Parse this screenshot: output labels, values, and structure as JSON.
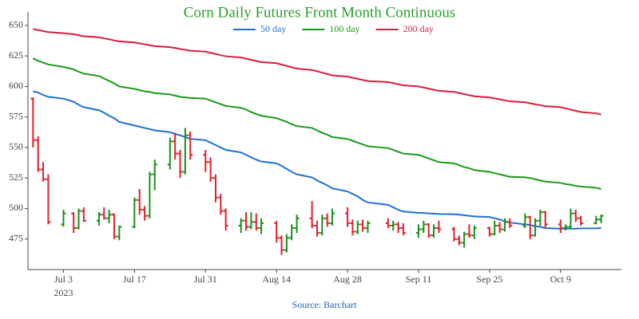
{
  "chart_data": {
    "type": "ohlc",
    "title": "Corn Daily Futures Front Month Continuous",
    "source": "Source: Barchart",
    "title_color": "#2ca02c",
    "source_color": "#1f5fbf",
    "up_color": "#1a8f1a",
    "down_color": "#e2202a",
    "legend_position": "top",
    "grid": false,
    "x": [
      "2023-06-27",
      "2023-06-28",
      "2023-06-29",
      "2023-06-30",
      "2023-07-03",
      "2023-07-05",
      "2023-07-06",
      "2023-07-07",
      "2023-07-10",
      "2023-07-11",
      "2023-07-12",
      "2023-07-13",
      "2023-07-14",
      "2023-07-17",
      "2023-07-18",
      "2023-07-19",
      "2023-07-20",
      "2023-07-21",
      "2023-07-24",
      "2023-07-25",
      "2023-07-26",
      "2023-07-27",
      "2023-07-28",
      "2023-07-31",
      "2023-08-01",
      "2023-08-02",
      "2023-08-03",
      "2023-08-04",
      "2023-08-07",
      "2023-08-08",
      "2023-08-09",
      "2023-08-10",
      "2023-08-11",
      "2023-08-14",
      "2023-08-15",
      "2023-08-16",
      "2023-08-17",
      "2023-08-18",
      "2023-08-21",
      "2023-08-22",
      "2023-08-23",
      "2023-08-24",
      "2023-08-25",
      "2023-08-28",
      "2023-08-29",
      "2023-08-30",
      "2023-08-31",
      "2023-09-01",
      "2023-09-05",
      "2023-09-06",
      "2023-09-07",
      "2023-09-08",
      "2023-09-11",
      "2023-09-12",
      "2023-09-13",
      "2023-09-14",
      "2023-09-15",
      "2023-09-18",
      "2023-09-19",
      "2023-09-20",
      "2023-09-21",
      "2023-09-22",
      "2023-09-25",
      "2023-09-26",
      "2023-09-27",
      "2023-09-28",
      "2023-09-29",
      "2023-10-02",
      "2023-10-03",
      "2023-10-04",
      "2023-10-05",
      "2023-10-06",
      "2023-10-09",
      "2023-10-10",
      "2023-10-11",
      "2023-10-12",
      "2023-10-13",
      "2023-10-16",
      "2023-10-17"
    ],
    "open": [
      590,
      556,
      532,
      524,
      487,
      496,
      484,
      498,
      490,
      495,
      492,
      495,
      477,
      485,
      507,
      499,
      494,
      528,
      536,
      555,
      545,
      530,
      560,
      544,
      538,
      525,
      509,
      498,
      486,
      490,
      485,
      489,
      484,
      488,
      476,
      466,
      476,
      484,
      492,
      486,
      480,
      492,
      488,
      496,
      488,
      481,
      487,
      484,
      488,
      486,
      487,
      484,
      480,
      483,
      487,
      478,
      484,
      483,
      475,
      472,
      479,
      478,
      484,
      479,
      486,
      483,
      489,
      486,
      493,
      478,
      490,
      497,
      487,
      484,
      485,
      496,
      492,
      488,
      491
    ],
    "high": [
      591,
      559,
      538,
      528,
      499,
      497,
      500,
      501,
      497,
      501,
      499,
      496,
      486,
      509,
      516,
      502,
      530,
      540,
      558,
      562,
      548,
      566,
      563,
      548,
      542,
      528,
      512,
      500,
      492,
      497,
      497,
      496,
      492,
      490,
      478,
      479,
      487,
      495,
      506,
      490,
      495,
      496,
      500,
      501,
      491,
      490,
      491,
      490,
      492,
      490,
      489,
      488,
      487,
      490,
      488,
      487,
      490,
      485,
      478,
      481,
      487,
      486,
      485,
      490,
      489,
      492,
      492,
      496,
      494,
      492,
      499,
      498,
      491,
      487,
      500,
      499,
      494,
      494,
      495
    ],
    "low": [
      550,
      530,
      522,
      487,
      485,
      480,
      483,
      489,
      486,
      491,
      488,
      475,
      474,
      484,
      495,
      490,
      492,
      515,
      532,
      540,
      525,
      528,
      540,
      530,
      522,
      505,
      495,
      482,
      480,
      482,
      483,
      482,
      479,
      472,
      462,
      464,
      474,
      480,
      484,
      477,
      478,
      485,
      486,
      485,
      478,
      479,
      481,
      480,
      484,
      482,
      480,
      478,
      476,
      480,
      476,
      476,
      480,
      473,
      470,
      468,
      476,
      475,
      477,
      478,
      480,
      481,
      484,
      484,
      475,
      477,
      486,
      484,
      480,
      482,
      483,
      489,
      486,
      487,
      488
    ],
    "close": [
      556,
      532,
      524,
      489,
      496,
      484,
      498,
      490,
      495,
      492,
      495,
      477,
      485,
      507,
      499,
      494,
      528,
      536,
      555,
      545,
      530,
      560,
      544,
      538,
      525,
      509,
      498,
      486,
      490,
      485,
      489,
      484,
      488,
      476,
      466,
      476,
      484,
      492,
      486,
      480,
      492,
      488,
      496,
      488,
      481,
      487,
      484,
      488,
      486,
      487,
      484,
      480,
      483,
      487,
      478,
      484,
      483,
      475,
      472,
      479,
      478,
      484,
      479,
      486,
      483,
      489,
      486,
      493,
      478,
      490,
      497,
      487,
      484,
      485,
      496,
      492,
      488,
      491,
      494
    ],
    "series": [
      {
        "name": "50 day",
        "color": "#1f6fd6",
        "values": [
          596,
          595,
          593,
          591.5,
          590,
          587.5,
          585,
          583,
          580.5,
          578.5,
          576,
          574,
          571,
          568,
          567,
          566,
          565,
          564,
          562.5,
          561,
          560,
          558.5,
          557,
          556,
          554,
          552,
          550,
          548,
          546,
          544,
          542,
          540,
          538.5,
          537,
          535,
          532.5,
          530,
          528,
          525.5,
          523,
          521,
          519,
          516.5,
          514,
          512,
          510,
          507,
          505,
          503,
          501,
          499,
          497.5,
          496.5,
          496.3,
          496,
          495.8,
          495.5,
          495.3,
          495,
          494.5,
          494,
          493.5,
          493,
          492,
          491,
          489.5,
          488.5,
          487,
          486.5,
          485.5,
          485,
          484,
          483.5,
          483.5,
          483.5,
          483.5,
          483.7,
          483.8,
          484
        ]
      },
      {
        "name": "100 day",
        "color": "#1a9a1a",
        "values": [
          623,
          621,
          619.5,
          618,
          616,
          614,
          612,
          610.5,
          608.5,
          606.5,
          604.5,
          602.5,
          600,
          598,
          597,
          596,
          595.5,
          594.5,
          593.5,
          592.5,
          591.5,
          591,
          590.5,
          590,
          588.5,
          587,
          585.5,
          584,
          582.5,
          581,
          579,
          577.5,
          576,
          574,
          572.5,
          571,
          569,
          567.5,
          566,
          564,
          562,
          560.5,
          558.5,
          557,
          555.5,
          554,
          552.5,
          551,
          549.5,
          548,
          546.5,
          545,
          544,
          542.5,
          541,
          539.5,
          538,
          537,
          535.5,
          534,
          533,
          531.5,
          530,
          529,
          528,
          527,
          526,
          525.5,
          525,
          524,
          523,
          522,
          521,
          520,
          519.5,
          518.5,
          518,
          517,
          516
        ]
      },
      {
        "name": "200 day",
        "color": "#d81e3c",
        "values": [
          647,
          646.2,
          645.3,
          644.5,
          643.6,
          642.8,
          642,
          641.1,
          640.3,
          639.4,
          638.6,
          637.7,
          636.9,
          636,
          635.3,
          634.5,
          633.8,
          633,
          632.2,
          631.5,
          630.7,
          630,
          629.2,
          628.5,
          627.5,
          626.6,
          625.6,
          624.7,
          623.7,
          622.8,
          621.8,
          620.9,
          619.9,
          619,
          617.9,
          616.8,
          615.7,
          614.6,
          613.5,
          612.4,
          611.3,
          610.2,
          609.1,
          608,
          607.1,
          606.2,
          605.3,
          604.4,
          603.6,
          602.7,
          601.8,
          600.9,
          600,
          599.1,
          598.2,
          597.3,
          596.4,
          595.5,
          594.6,
          593.7,
          592.8,
          591.9,
          591,
          590.2,
          589.4,
          588.6,
          587.8,
          587,
          586.2,
          585.4,
          584.6,
          583.8,
          583,
          582,
          581,
          580,
          579,
          578,
          577
        ]
      }
    ],
    "xlim": [
      "2023-06-26",
      "2023-10-21"
    ],
    "xticks": [
      {
        "value": "2023-07-03",
        "label": "Jul 3"
      },
      {
        "value": "2023-07-17",
        "label": "Jul 17"
      },
      {
        "value": "2023-07-31",
        "label": "Jul 31"
      },
      {
        "value": "2023-08-14",
        "label": "Aug 14"
      },
      {
        "value": "2023-08-28",
        "label": "Aug 28"
      },
      {
        "value": "2023-09-11",
        "label": "Sep 11"
      },
      {
        "value": "2023-09-25",
        "label": "Sep 25"
      },
      {
        "value": "2023-10-09",
        "label": "Oct 9"
      }
    ],
    "x_year_label": "2023",
    "ylim": [
      450,
      661
    ],
    "yticks": [
      475,
      500,
      525,
      550,
      575,
      600,
      625,
      650
    ]
  }
}
